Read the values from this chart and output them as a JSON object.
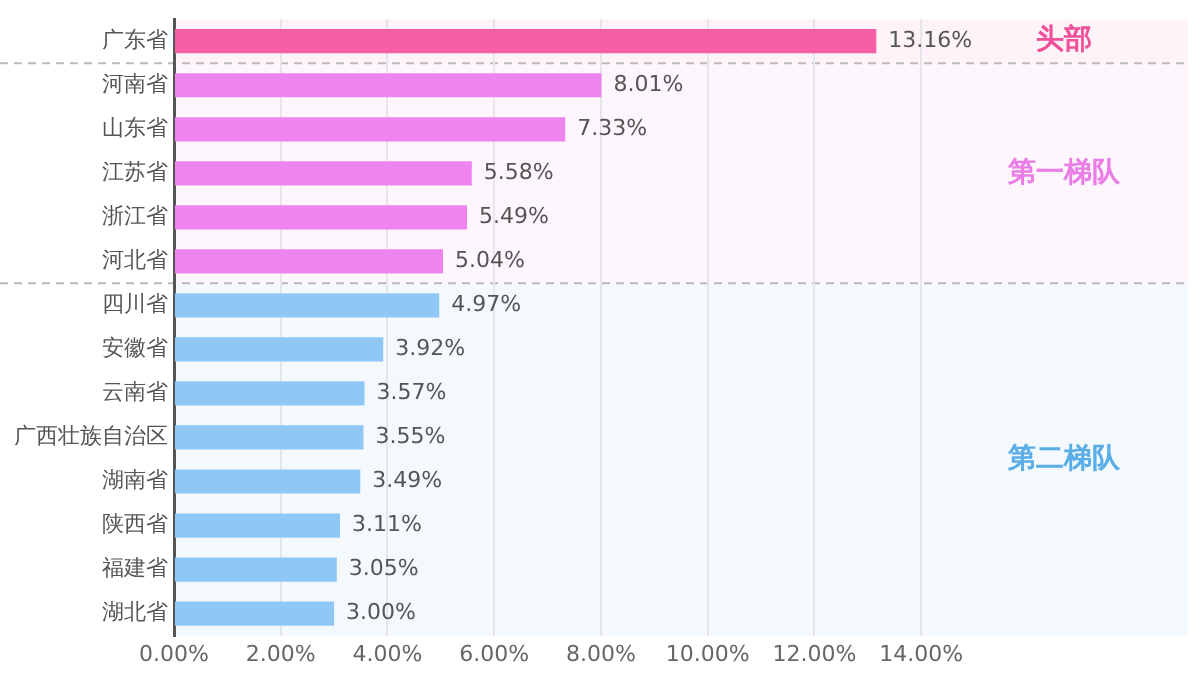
{
  "chart_data": {
    "type": "bar",
    "orientation": "horizontal",
    "categories": [
      "广东省",
      "河南省",
      "山东省",
      "江苏省",
      "浙江省",
      "河北省",
      "四川省",
      "安徽省",
      "云南省",
      "广西壮族自治区",
      "湖南省",
      "陕西省",
      "福建省",
      "湖北省"
    ],
    "values": [
      13.16,
      8.01,
      7.33,
      5.58,
      5.49,
      5.04,
      4.97,
      3.92,
      3.57,
      3.55,
      3.49,
      3.11,
      3.05,
      3.0
    ],
    "colors": [
      "#f45fa5",
      "#f084ee",
      "#f084ee",
      "#f084ee",
      "#f084ee",
      "#f084ee",
      "#8fc8f6",
      "#8fc8f6",
      "#8fc8f6",
      "#8fc8f6",
      "#8fc8f6",
      "#8fc8f6",
      "#8fc8f6",
      "#8fc8f6"
    ],
    "value_labels": [
      "13.16%",
      "8.01%",
      "7.33%",
      "5.58%",
      "5.49%",
      "5.04%",
      "4.97%",
      "3.92%",
      "3.57%",
      "3.55%",
      "3.49%",
      "3.11%",
      "3.05%",
      "3.00%"
    ],
    "xlim": [
      0,
      19
    ],
    "xticks": [
      {
        "value": 0,
        "label": "0.00%"
      },
      {
        "value": 2,
        "label": "2.00%"
      },
      {
        "value": 4,
        "label": "4.00%"
      },
      {
        "value": 6,
        "label": "6.00%"
      },
      {
        "value": 8,
        "label": "8.00%"
      },
      {
        "value": 10,
        "label": "10.00%"
      },
      {
        "value": 12,
        "label": "12.00%"
      },
      {
        "value": 14,
        "label": "14.00%"
      }
    ],
    "grid": "x",
    "bands": [
      {
        "axis": "y",
        "from": "广东省",
        "to": "广东省",
        "label": "头部",
        "color": "#f0509a"
      },
      {
        "axis": "y",
        "from": "河南省",
        "to": "河北省",
        "label": "第一梯队",
        "color": "#ea7de6"
      },
      {
        "axis": "y",
        "from": "四川省",
        "to": "湖北省",
        "label": "第二梯队",
        "color": "#5aaee8"
      }
    ]
  }
}
